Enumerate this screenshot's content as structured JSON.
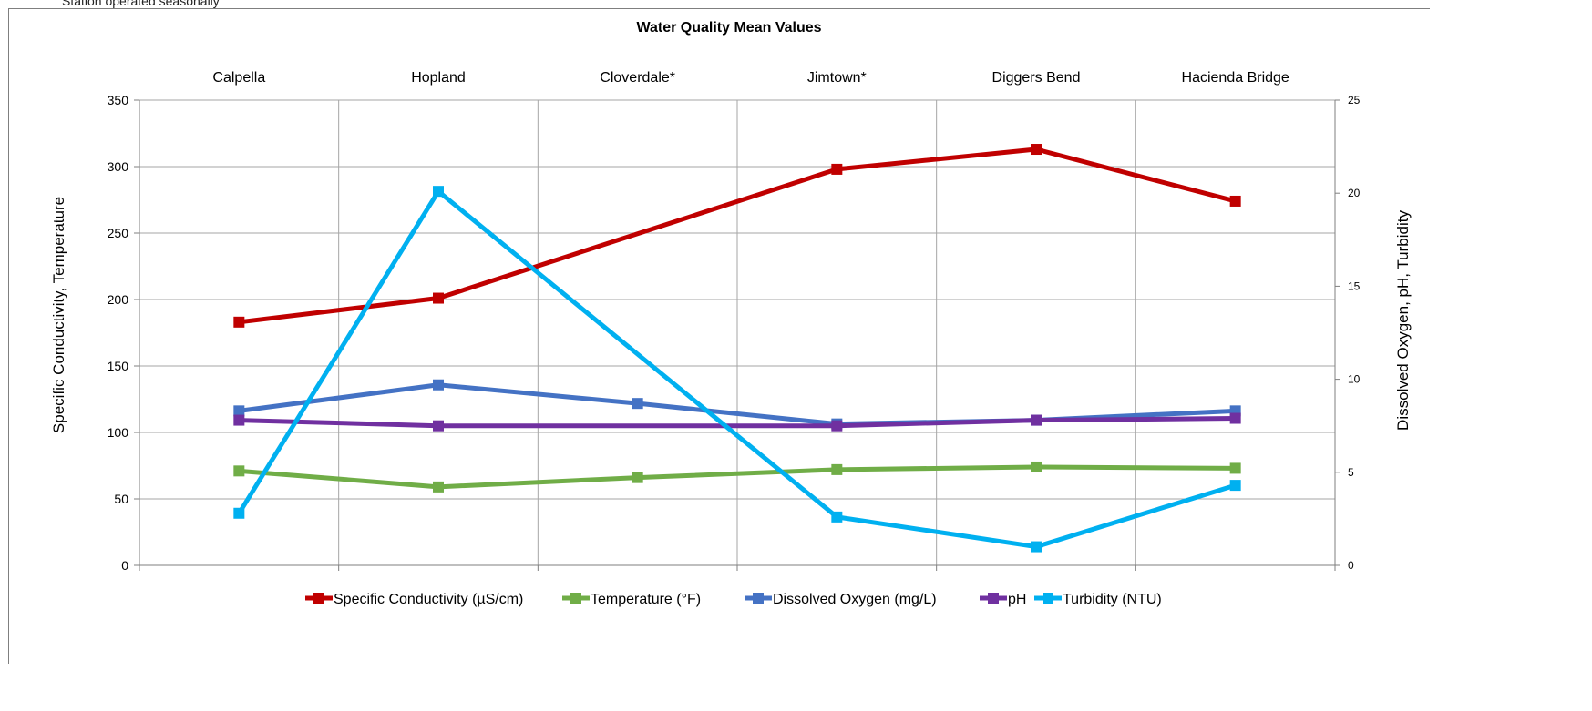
{
  "note": "Station operated seasonally",
  "chart_data": {
    "type": "line",
    "title": "Water Quality Mean Values",
    "categories": [
      "Calpella",
      "Hopland",
      "Cloverdale*",
      "Jimtown*",
      "Diggers Bend",
      "Hacienda Bridge"
    ],
    "ylabel": "Specific Conductivity, Temperature",
    "y2label": "Dissolved Oxygen, pH, Turbidity",
    "ylim": [
      0,
      350
    ],
    "y2lim": [
      0,
      25
    ],
    "yticks": [
      0,
      50,
      100,
      150,
      200,
      250,
      300,
      350
    ],
    "y2ticks": [
      0,
      5,
      10,
      15,
      20,
      25
    ],
    "grid": true,
    "legend_position": "bottom",
    "series": [
      {
        "name": "Specific Conductivity (µS/cm)",
        "axis": "left",
        "color": "#c00000",
        "values": [
          183,
          201,
          null,
          298,
          313,
          274
        ]
      },
      {
        "name": "Temperature  (°F)",
        "axis": "left",
        "color": "#70ad47",
        "values": [
          71,
          59,
          66,
          72,
          74,
          73
        ]
      },
      {
        "name": "Dissolved Oxygen (mg/L)",
        "axis": "right",
        "color": "#4472c4",
        "values": [
          8.3,
          9.7,
          8.7,
          7.6,
          7.8,
          8.3
        ]
      },
      {
        "name": "pH",
        "axis": "right",
        "color": "#7030a0",
        "values": [
          7.8,
          7.5,
          null,
          7.5,
          7.8,
          7.9
        ]
      },
      {
        "name": "Turbidity (NTU)",
        "axis": "right",
        "color": "#00b0f0",
        "values": [
          2.8,
          20.1,
          null,
          2.6,
          1.0,
          4.3
        ]
      }
    ]
  }
}
